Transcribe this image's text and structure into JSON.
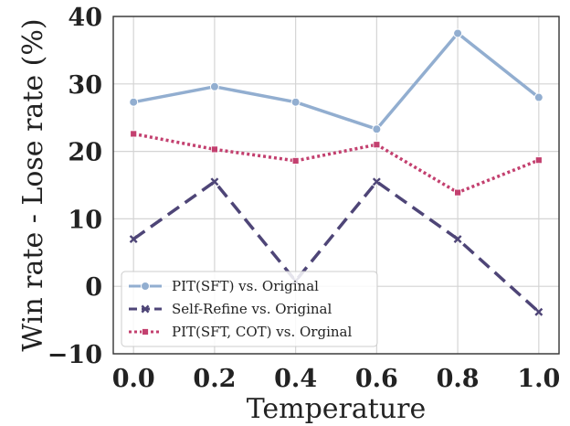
{
  "chart_data": {
    "type": "line",
    "x": [
      0.0,
      0.2,
      0.4,
      0.6,
      0.8,
      1.0
    ],
    "x_tick_labels": [
      "0.0",
      "0.2",
      "0.4",
      "0.6",
      "0.8",
      "1.0"
    ],
    "y_ticks": [
      -10,
      0,
      10,
      20,
      30,
      40
    ],
    "y_tick_labels": [
      "−10",
      "0",
      "10",
      "20",
      "30",
      "40"
    ],
    "xlabel": "Temperature",
    "ylabel": "Win rate - Lose rate (%)",
    "xlim": [
      -0.05,
      1.05
    ],
    "ylim": [
      -10,
      40
    ],
    "grid": true,
    "legend_position": "lower-left",
    "series": [
      {
        "name": "PIT(SFT) vs. Original",
        "values": [
          27.3,
          29.6,
          27.3,
          23.3,
          37.5,
          28.0
        ],
        "color": "#92aed0",
        "line_style": "solid",
        "marker": "circle"
      },
      {
        "name": "Self-Refine vs. Original",
        "values": [
          7.0,
          15.5,
          0.8,
          15.5,
          7.0,
          -3.8
        ],
        "color": "#4e4577",
        "line_style": "dashed",
        "marker": "x"
      },
      {
        "name": "PIT(SFT, COT) vs. Orginal",
        "values": [
          22.6,
          20.3,
          18.6,
          21.0,
          13.9,
          18.7
        ],
        "color": "#c3406f",
        "line_style": "dotted",
        "marker": "square"
      }
    ]
  }
}
